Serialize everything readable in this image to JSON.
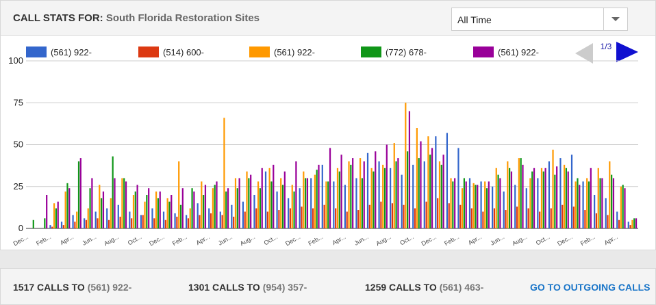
{
  "header": {
    "title_label": "CALL STATS FOR:",
    "site": "South Florida Restoration Sites"
  },
  "dropdown": {
    "selected": "All Time"
  },
  "pager": "1/3",
  "chart_data": {
    "type": "bar",
    "categories": [
      "Dec...",
      null,
      "Feb...",
      null,
      "Apr...",
      null,
      "Jun...",
      null,
      "Aug...",
      null,
      "Oct...",
      null,
      "Dec...",
      null,
      "Feb...",
      null,
      "Apr...",
      null,
      "Jun...",
      null,
      "Aug...",
      null,
      "Oct...",
      null,
      "Dec...",
      null,
      "Feb...",
      null,
      "Apr...",
      null,
      "Jun...",
      null,
      "Aug...",
      null,
      "Oct...",
      null,
      "Dec...",
      null,
      "Feb...",
      null,
      "Apr...",
      null,
      "Jun...",
      null,
      "Aug...",
      null,
      "Oct...",
      null,
      "Dec...",
      null,
      "Feb...",
      null,
      "Apr...",
      null
    ],
    "series": [
      {
        "name": "(561) 922-",
        "color": "#3366cc",
        "values": [
          0,
          0,
          2,
          4,
          8,
          6,
          10,
          12,
          14,
          10,
          8,
          12,
          10,
          9,
          8,
          15,
          12,
          10,
          14,
          16,
          20,
          34,
          22,
          18,
          24,
          30,
          38,
          28,
          26,
          30,
          45,
          40,
          36,
          32,
          38,
          40,
          55,
          57,
          48,
          30,
          28,
          25,
          22,
          26,
          24,
          30,
          40,
          42,
          44,
          28,
          20,
          18,
          10,
          4
        ]
      },
      {
        "name": "(514) 600-",
        "color": "#dc3912",
        "values": [
          0,
          0,
          1,
          2,
          4,
          5,
          6,
          5,
          7,
          6,
          8,
          6,
          5,
          7,
          6,
          8,
          9,
          8,
          7,
          10,
          12,
          10,
          11,
          12,
          13,
          12,
          14,
          12,
          10,
          11,
          14,
          16,
          15,
          14,
          12,
          16,
          18,
          15,
          14,
          12,
          10,
          12,
          11,
          13,
          12,
          10,
          12,
          14,
          13,
          11,
          9,
          8,
          5,
          2
        ]
      },
      {
        "name": "(561) 922-",
        "color": "#ff9900",
        "values": [
          0,
          0,
          15,
          22,
          10,
          12,
          26,
          18,
          30,
          20,
          16,
          22,
          18,
          40,
          12,
          28,
          24,
          66,
          30,
          34,
          28,
          36,
          30,
          26,
          34,
          32,
          28,
          36,
          40,
          42,
          36,
          38,
          51,
          75,
          60,
          55,
          40,
          30,
          24,
          27,
          28,
          36,
          40,
          42,
          30,
          36,
          47,
          38,
          28,
          30,
          36,
          40,
          25,
          5
        ]
      },
      {
        "name": "(772) 678-",
        "color": "#109618",
        "values": [
          5,
          6,
          12,
          27,
          40,
          24,
          18,
          43,
          30,
          22,
          20,
          18,
          16,
          14,
          24,
          20,
          26,
          22,
          24,
          30,
          24,
          28,
          26,
          22,
          30,
          35,
          28,
          34,
          38,
          30,
          34,
          36,
          40,
          46,
          42,
          44,
          38,
          28,
          30,
          26,
          24,
          32,
          36,
          42,
          34,
          34,
          32,
          36,
          30,
          28,
          30,
          32,
          26,
          6
        ]
      },
      {
        "name": "(561) 922-",
        "color": "#990099",
        "values": [
          0,
          20,
          16,
          24,
          42,
          30,
          22,
          30,
          28,
          26,
          24,
          22,
          20,
          24,
          22,
          26,
          28,
          24,
          30,
          32,
          36,
          38,
          34,
          40,
          30,
          38,
          48,
          44,
          42,
          40,
          46,
          50,
          42,
          70,
          52,
          48,
          44,
          30,
          28,
          26,
          28,
          30,
          34,
          38,
          36,
          36,
          37,
          34,
          26,
          36,
          30,
          30,
          24,
          6
        ]
      }
    ],
    "ylim": [
      0,
      100
    ],
    "yticks": [
      0,
      25,
      50,
      75,
      100
    ],
    "grid": true
  },
  "footer": {
    "stats": [
      {
        "count": 1517,
        "label": "CALLS TO",
        "number": "(561) 922-"
      },
      {
        "count": 1301,
        "label": "CALLS TO",
        "number": "(954) 357-"
      },
      {
        "count": 1259,
        "label": "CALLS TO",
        "number": "(561) 463-"
      }
    ],
    "link": "GO TO OUTGOING CALLS"
  }
}
